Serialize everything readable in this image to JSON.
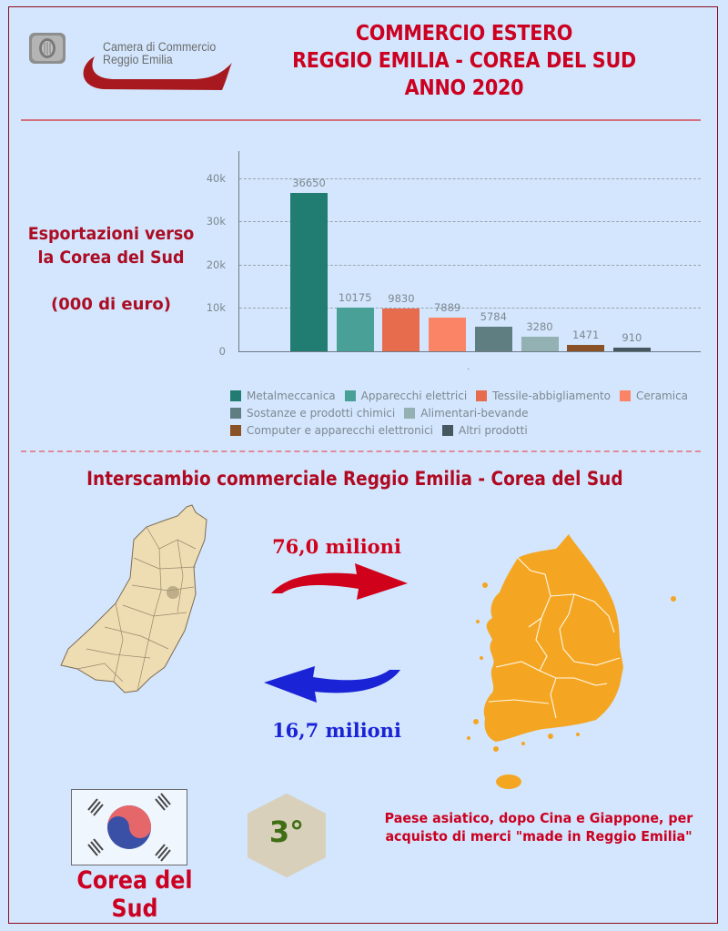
{
  "header": {
    "logo_line1": "Camera di Commercio",
    "logo_line2": "Reggio Emilia",
    "title_lines": [
      "COMMERCIO ESTERO",
      "REGGIO EMILIA - COREA DEL SUD",
      "ANNO 2020"
    ]
  },
  "exports": {
    "label_line1": "Esportazioni verso",
    "label_line2": "la Corea del Sud",
    "unit": "(000 di euro)"
  },
  "chart_data": {
    "type": "bar",
    "title": "Esportazioni verso la Corea del Sud",
    "xlabel": ".",
    "ylabel": "",
    "unit": "000 di euro",
    "ylim": [
      0,
      46000
    ],
    "yticks": [
      "0",
      "10k",
      "20k",
      "30k",
      "40k"
    ],
    "grid": true,
    "legend_position": "bottom",
    "categories": [
      "Metalmeccanica",
      "Apparecchi elettrici",
      "Tessile-abbigliamento",
      "Ceramica",
      "Sostanze e prodotti chimici",
      "Alimentari-bevande",
      "Computer e apparecchi elettronici",
      "Altri prodotti"
    ],
    "values": [
      36650,
      10175,
      9830,
      7889,
      5784,
      3280,
      1471,
      910
    ],
    "colors": [
      "#217c72",
      "#49a096",
      "#e76b4d",
      "#fc8466",
      "#5f7e81",
      "#93b1b3",
      "#8a5026",
      "#47575f"
    ],
    "value_labels": [
      "36650",
      "10175",
      "9830",
      "7889",
      "5784",
      "3280",
      "1471",
      "910"
    ]
  },
  "interchange": {
    "title": "Interscambio commerciale Reggio Emilia - Corea del Sud",
    "export_amount": "76,0 milioni",
    "import_amount": "16,7 milioni",
    "export_color": "#d0021b",
    "import_color": "#1a23d6"
  },
  "footer": {
    "country_name": "Corea del Sud",
    "rank": "3°",
    "rank_desc_line1": "Paese asiatico, dopo Cina e Giappone, per",
    "rank_desc_line2": "acquisto di merci \"made in Reggio Emilia\""
  },
  "colors": {
    "background": "#d3e6fd",
    "accent_red": "#cc0020",
    "dark_red": "#ab0d24"
  }
}
